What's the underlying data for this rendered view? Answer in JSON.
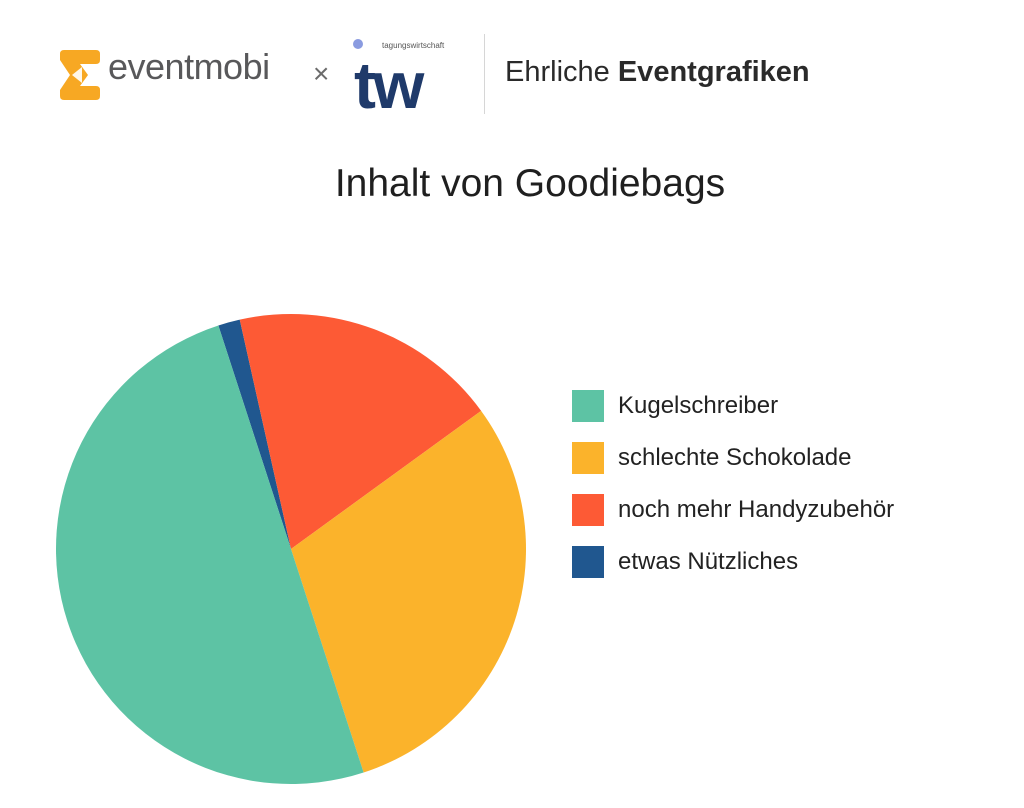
{
  "header": {
    "brand_left": "eventmobi",
    "separator": "×",
    "brand_right_tagline": "tagungswirtschaft",
    "brand_right": "tw",
    "tagline_light": "Ehrliche",
    "tagline_bold": "Eventgrafiken"
  },
  "colors": {
    "eventmobi_orange": "#f7a823",
    "tw_navy": "#1f3a6a",
    "tw_dot": "#8a9be0"
  },
  "chart_data": {
    "type": "pie",
    "title": "Inhalt von Goodiebags",
    "slices": [
      {
        "label": "Kugelschreiber",
        "value": 50,
        "color": "#5dc3a4"
      },
      {
        "label": "schlechte Schokolade",
        "value": 30,
        "color": "#fbb32b"
      },
      {
        "label": "noch mehr Handyzubehör",
        "value": 18.5,
        "color": "#fd5a35"
      },
      {
        "label": "etwas Nützliches",
        "value": 1.5,
        "color": "#20578f"
      }
    ],
    "legend_position": "right"
  }
}
